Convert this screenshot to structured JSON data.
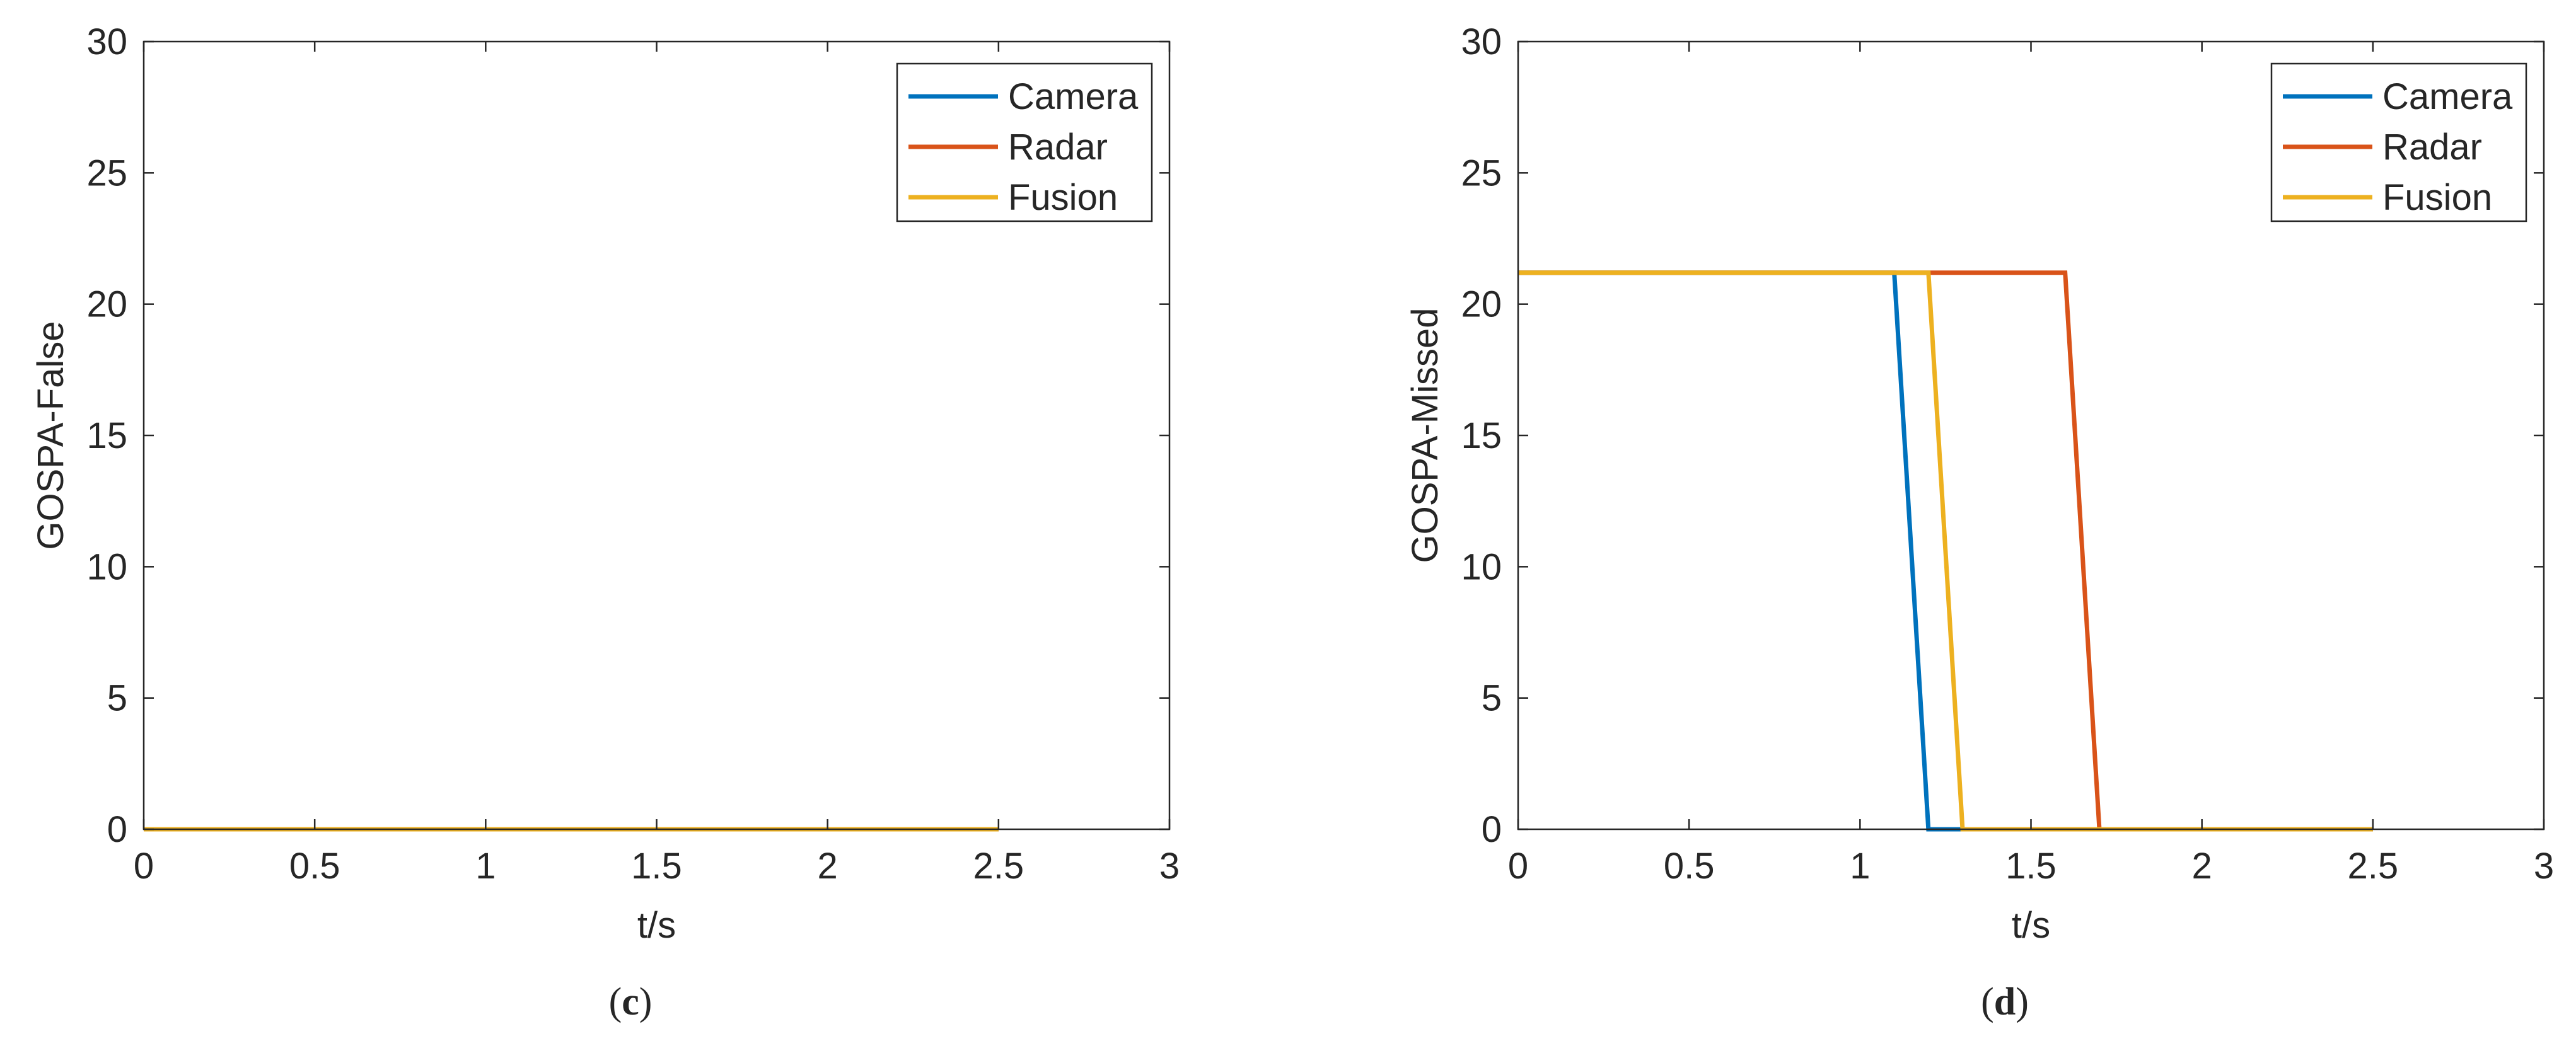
{
  "chart_data": [
    {
      "type": "line",
      "panel": "(c)",
      "xlabel": "t/s",
      "ylabel": "GOSPA-False",
      "xlim": [
        0,
        3
      ],
      "ylim": [
        0,
        30
      ],
      "xticks": [
        0,
        0.5,
        1,
        1.5,
        2,
        2.5,
        3
      ],
      "xtick_labels": [
        "0",
        "0.5",
        "1",
        "1.5",
        "2",
        "2.5",
        "3"
      ],
      "yticks": [
        0,
        5,
        10,
        15,
        20,
        25,
        30
      ],
      "ytick_labels": [
        "0",
        "5",
        "10",
        "15",
        "20",
        "25",
        "30"
      ],
      "grid": false,
      "legend_position": "top-right",
      "series": [
        {
          "name": "Camera",
          "color": "#0072bd",
          "x": [
            0,
            2.5
          ],
          "y": [
            0,
            0
          ]
        },
        {
          "name": "Radar",
          "color": "#d95319",
          "x": [
            0,
            2.5
          ],
          "y": [
            0,
            0
          ]
        },
        {
          "name": "Fusion",
          "color": "#edb120",
          "x": [
            0,
            2.5
          ],
          "y": [
            0,
            0
          ]
        }
      ]
    },
    {
      "type": "line",
      "panel": "(d)",
      "xlabel": "t/s",
      "ylabel": "GOSPA-Missed",
      "xlim": [
        0,
        3
      ],
      "ylim": [
        0,
        30
      ],
      "xticks": [
        0,
        0.5,
        1,
        1.5,
        2,
        2.5,
        3
      ],
      "xtick_labels": [
        "0",
        "0.5",
        "1",
        "1.5",
        "2",
        "2.5",
        "3"
      ],
      "yticks": [
        0,
        5,
        10,
        15,
        20,
        25,
        30
      ],
      "ytick_labels": [
        "0",
        "5",
        "10",
        "15",
        "20",
        "25",
        "30"
      ],
      "grid": false,
      "legend_position": "top-right",
      "series": [
        {
          "name": "Camera",
          "color": "#0072bd",
          "x": [
            0,
            1.1,
            1.2,
            2.5
          ],
          "y": [
            21.2,
            21.2,
            0,
            0
          ]
        },
        {
          "name": "Radar",
          "color": "#d95319",
          "x": [
            0,
            1.6,
            1.7,
            2.5
          ],
          "y": [
            21.2,
            21.2,
            0,
            0
          ]
        },
        {
          "name": "Fusion",
          "color": "#edb120",
          "x": [
            0,
            1.2,
            1.3,
            2.5
          ],
          "y": [
            21.2,
            21.2,
            0,
            0
          ]
        }
      ]
    }
  ],
  "captions": {
    "left_open": "(",
    "left_letter": "c",
    "left_close": ")",
    "right_open": "(",
    "right_letter": "d",
    "right_close": ")"
  }
}
